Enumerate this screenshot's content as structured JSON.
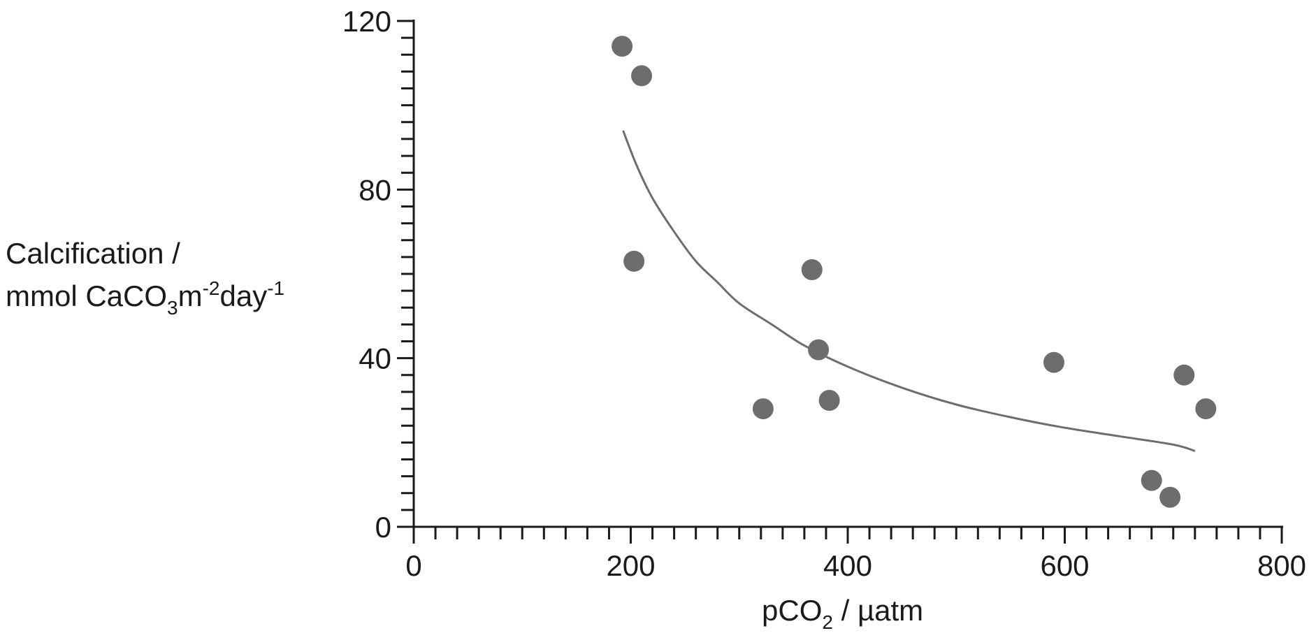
{
  "chart_data": {
    "type": "scatter",
    "title": "",
    "xlabel": {
      "main": "pCO",
      "subscript": "2",
      "rest": " / µatm"
    },
    "ylabel": {
      "line1": "Calcification /",
      "line2_prefix": "mmol CaCO",
      "line2_sub": "3",
      "line2_mid1": "m",
      "line2_sup1": "-2",
      "line2_mid2": "day",
      "line2_sup2": "-1"
    },
    "xlim": [
      0,
      800
    ],
    "ylim": [
      0,
      120
    ],
    "x_ticks": [
      0,
      200,
      400,
      600,
      800
    ],
    "x_tick_labels": [
      "0",
      "200",
      "400",
      "600",
      "800"
    ],
    "x_minor_step": 20,
    "y_ticks": [
      0,
      40,
      80,
      120
    ],
    "y_tick_labels": [
      "0",
      "40",
      "80",
      "120"
    ],
    "y_minor_step": 4,
    "grid": false,
    "legend": "none",
    "point_color": "#6d6d6d",
    "curve_color": "#6d6d6d",
    "axis_color": "#1a1a1a",
    "points": [
      {
        "x": 192,
        "y": 114
      },
      {
        "x": 210,
        "y": 107
      },
      {
        "x": 203,
        "y": 63
      },
      {
        "x": 322,
        "y": 28
      },
      {
        "x": 367,
        "y": 61
      },
      {
        "x": 373,
        "y": 42
      },
      {
        "x": 383,
        "y": 30
      },
      {
        "x": 590,
        "y": 39
      },
      {
        "x": 680,
        "y": 11
      },
      {
        "x": 697,
        "y": 7
      },
      {
        "x": 710,
        "y": 36
      },
      {
        "x": 730,
        "y": 28
      }
    ],
    "fit_curve": [
      {
        "x": 193,
        "y": 94
      },
      {
        "x": 205,
        "y": 86
      },
      {
        "x": 220,
        "y": 78
      },
      {
        "x": 240,
        "y": 70
      },
      {
        "x": 260,
        "y": 63
      },
      {
        "x": 280,
        "y": 58
      },
      {
        "x": 300,
        "y": 53
      },
      {
        "x": 330,
        "y": 48
      },
      {
        "x": 360,
        "y": 43
      },
      {
        "x": 400,
        "y": 38
      },
      {
        "x": 450,
        "y": 33
      },
      {
        "x": 500,
        "y": 29
      },
      {
        "x": 550,
        "y": 26
      },
      {
        "x": 600,
        "y": 23.5
      },
      {
        "x": 650,
        "y": 21.5
      },
      {
        "x": 700,
        "y": 19.5
      },
      {
        "x": 720,
        "y": 18
      }
    ]
  }
}
